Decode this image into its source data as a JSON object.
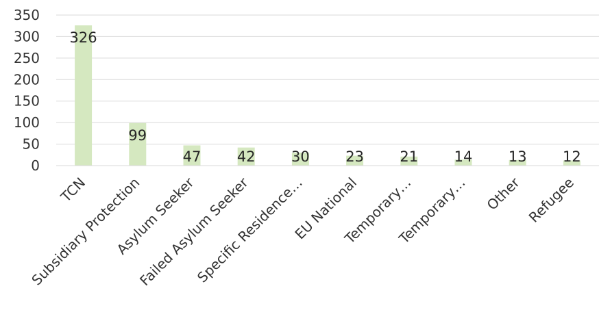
{
  "chart_data": {
    "type": "bar",
    "title": "",
    "xlabel": "",
    "ylabel": "",
    "categories": [
      "TCN",
      "Subsidiary Protection",
      "Asylum Seeker",
      "Failed Asylum Seeker",
      "Specific Residence…",
      "EU National",
      "Temporary…",
      "Temporary…",
      "Other",
      "Refugee"
    ],
    "values": [
      326,
      99,
      47,
      42,
      30,
      23,
      21,
      14,
      13,
      12
    ],
    "ylim": [
      0,
      350
    ],
    "yticks": [
      0,
      50,
      100,
      150,
      200,
      250,
      300,
      350
    ],
    "grid": true,
    "legend": "none",
    "bar_color": "#d5e8c0",
    "data_labels": true
  }
}
